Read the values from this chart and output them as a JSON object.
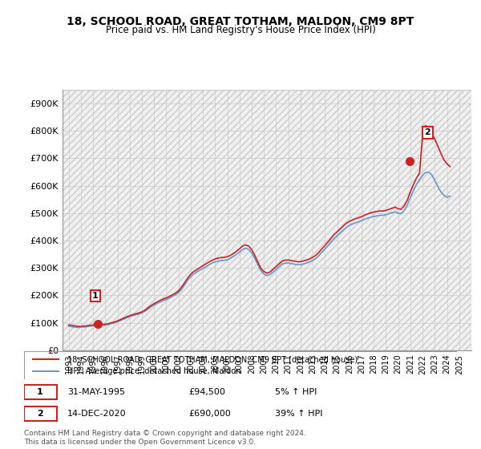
{
  "title": "18, SCHOOL ROAD, GREAT TOTHAM, MALDON, CM9 8PT",
  "subtitle": "Price paid vs. HM Land Registry's House Price Index (HPI)",
  "ylabel_ticks": [
    "£0",
    "£100K",
    "£200K",
    "£300K",
    "£400K",
    "£500K",
    "£600K",
    "£700K",
    "£800K",
    "£900K"
  ],
  "ytick_values": [
    0,
    100000,
    200000,
    300000,
    400000,
    500000,
    600000,
    700000,
    800000,
    900000
  ],
  "ylim": [
    0,
    950000
  ],
  "xlim_start": 1992.5,
  "xlim_end": 2026.0,
  "xticks": [
    1993,
    1994,
    1995,
    1996,
    1997,
    1998,
    1999,
    2000,
    2001,
    2002,
    2003,
    2004,
    2005,
    2006,
    2007,
    2008,
    2009,
    2010,
    2011,
    2012,
    2013,
    2014,
    2015,
    2016,
    2017,
    2018,
    2019,
    2020,
    2021,
    2022,
    2023,
    2024,
    2025
  ],
  "hpi_color": "#6699cc",
  "price_color": "#cc2222",
  "marker_color": "#cc2222",
  "background_hatch_color": "#dddddd",
  "grid_color": "#cccccc",
  "sale1_date": 1995.42,
  "sale1_price": 94500,
  "sale2_date": 2020.96,
  "sale2_price": 690000,
  "sale1_label": "1",
  "sale2_label": "2",
  "legend_line1": "18, SCHOOL ROAD, GREAT TOTHAM, MALDON, CM9 8PT (detached house)",
  "legend_line2": "HPI: Average price, detached house, Maldon",
  "annotation1": "1   31-MAY-1995        £94,500        5% ↑ HPI",
  "annotation2": "2   14-DEC-2020        £690,000      39% ↑ HPI",
  "footer": "Contains HM Land Registry data © Crown copyright and database right 2024.\nThis data is licensed under the Open Government Licence v3.0.",
  "hpi_data_x": [
    1993.0,
    1993.25,
    1993.5,
    1993.75,
    1994.0,
    1994.25,
    1994.5,
    1994.75,
    1995.0,
    1995.25,
    1995.5,
    1995.75,
    1996.0,
    1996.25,
    1996.5,
    1996.75,
    1997.0,
    1997.25,
    1997.5,
    1997.75,
    1998.0,
    1998.25,
    1998.5,
    1998.75,
    1999.0,
    1999.25,
    1999.5,
    1999.75,
    2000.0,
    2000.25,
    2000.5,
    2000.75,
    2001.0,
    2001.25,
    2001.5,
    2001.75,
    2002.0,
    2002.25,
    2002.5,
    2002.75,
    2003.0,
    2003.25,
    2003.5,
    2003.75,
    2004.0,
    2004.25,
    2004.5,
    2004.75,
    2005.0,
    2005.25,
    2005.5,
    2005.75,
    2006.0,
    2006.25,
    2006.5,
    2006.75,
    2007.0,
    2007.25,
    2007.5,
    2007.75,
    2008.0,
    2008.25,
    2008.5,
    2008.75,
    2009.0,
    2009.25,
    2009.5,
    2009.75,
    2010.0,
    2010.25,
    2010.5,
    2010.75,
    2011.0,
    2011.25,
    2011.5,
    2011.75,
    2012.0,
    2012.25,
    2012.5,
    2012.75,
    2013.0,
    2013.25,
    2013.5,
    2013.75,
    2014.0,
    2014.25,
    2014.5,
    2014.75,
    2015.0,
    2015.25,
    2015.5,
    2015.75,
    2016.0,
    2016.25,
    2016.5,
    2016.75,
    2017.0,
    2017.25,
    2017.5,
    2017.75,
    2018.0,
    2018.25,
    2018.5,
    2018.75,
    2019.0,
    2019.25,
    2019.5,
    2019.75,
    2020.0,
    2020.25,
    2020.5,
    2020.75,
    2021.0,
    2021.25,
    2021.5,
    2021.75,
    2022.0,
    2022.25,
    2022.5,
    2022.75,
    2023.0,
    2023.25,
    2023.5,
    2023.75,
    2024.0,
    2024.25
  ],
  "hpi_data_y": [
    88000,
    86000,
    84000,
    83000,
    84000,
    85000,
    86000,
    88000,
    89000,
    90000,
    90500,
    91000,
    92000,
    94000,
    97000,
    100000,
    104000,
    108000,
    113000,
    118000,
    122000,
    126000,
    129000,
    132000,
    136000,
    142000,
    150000,
    158000,
    165000,
    171000,
    176000,
    181000,
    185000,
    190000,
    196000,
    202000,
    210000,
    222000,
    238000,
    255000,
    268000,
    278000,
    285000,
    292000,
    298000,
    305000,
    312000,
    318000,
    322000,
    325000,
    327000,
    328000,
    330000,
    335000,
    342000,
    350000,
    358000,
    368000,
    372000,
    368000,
    355000,
    335000,
    312000,
    290000,
    278000,
    272000,
    276000,
    285000,
    295000,
    305000,
    315000,
    318000,
    318000,
    316000,
    314000,
    312000,
    312000,
    315000,
    318000,
    322000,
    328000,
    335000,
    345000,
    358000,
    370000,
    382000,
    395000,
    408000,
    418000,
    428000,
    438000,
    448000,
    455000,
    460000,
    465000,
    468000,
    472000,
    478000,
    482000,
    485000,
    488000,
    490000,
    492000,
    492000,
    494000,
    498000,
    502000,
    505000,
    500000,
    498000,
    510000,
    530000,
    558000,
    582000,
    605000,
    622000,
    638000,
    648000,
    650000,
    640000,
    620000,
    598000,
    578000,
    565000,
    558000,
    562000
  ],
  "price_data_x": [
    1993.0,
    1993.25,
    1993.5,
    1993.75,
    1994.0,
    1994.25,
    1994.5,
    1994.75,
    1995.0,
    1995.25,
    1995.5,
    1995.75,
    1996.0,
    1996.25,
    1996.5,
    1996.75,
    1997.0,
    1997.25,
    1997.5,
    1997.75,
    1998.0,
    1998.25,
    1998.5,
    1998.75,
    1999.0,
    1999.25,
    1999.5,
    1999.75,
    2000.0,
    2000.25,
    2000.5,
    2000.75,
    2001.0,
    2001.25,
    2001.5,
    2001.75,
    2002.0,
    2002.25,
    2002.5,
    2002.75,
    2003.0,
    2003.25,
    2003.5,
    2003.75,
    2004.0,
    2004.25,
    2004.5,
    2004.75,
    2005.0,
    2005.25,
    2005.5,
    2005.75,
    2006.0,
    2006.25,
    2006.5,
    2006.75,
    2007.0,
    2007.25,
    2007.5,
    2007.75,
    2008.0,
    2008.25,
    2008.5,
    2008.75,
    2009.0,
    2009.25,
    2009.5,
    2009.75,
    2010.0,
    2010.25,
    2010.5,
    2010.75,
    2011.0,
    2011.25,
    2011.5,
    2011.75,
    2012.0,
    2012.25,
    2012.5,
    2012.75,
    2013.0,
    2013.25,
    2013.5,
    2013.75,
    2014.0,
    2014.25,
    2014.5,
    2014.75,
    2015.0,
    2015.25,
    2015.5,
    2015.75,
    2016.0,
    2016.25,
    2016.5,
    2016.75,
    2017.0,
    2017.25,
    2017.5,
    2017.75,
    2018.0,
    2018.25,
    2018.5,
    2018.75,
    2019.0,
    2019.25,
    2019.5,
    2019.75,
    2020.0,
    2020.25,
    2020.5,
    2020.75,
    2021.0,
    2021.25,
    2021.5,
    2021.75,
    2022.0,
    2022.25,
    2022.5,
    2022.75,
    2023.0,
    2023.25,
    2023.5,
    2023.75,
    2024.0,
    2024.25
  ],
  "price_data_y": [
    92000,
    91000,
    89000,
    87000,
    87000,
    88000,
    89000,
    91000,
    92000,
    93000,
    93500,
    94000,
    95000,
    97000,
    100000,
    103000,
    107000,
    112000,
    117000,
    122000,
    126000,
    130000,
    133000,
    136000,
    140000,
    146000,
    155000,
    163000,
    170000,
    176000,
    182000,
    187000,
    191000,
    196000,
    202000,
    208000,
    216000,
    230000,
    246000,
    263000,
    277000,
    287000,
    294000,
    301000,
    308000,
    315000,
    322000,
    328000,
    333000,
    336000,
    338000,
    339000,
    341000,
    346000,
    353000,
    361000,
    370000,
    380000,
    384000,
    380000,
    367000,
    346000,
    322000,
    299000,
    287000,
    281000,
    285000,
    295000,
    305000,
    315000,
    325000,
    329000,
    329000,
    327000,
    325000,
    323000,
    323000,
    326000,
    329000,
    333000,
    339000,
    346000,
    357000,
    370000,
    382000,
    395000,
    408000,
    422000,
    432000,
    442000,
    453000,
    463000,
    470000,
    475000,
    480000,
    483000,
    487000,
    493000,
    497000,
    501000,
    504000,
    506000,
    508000,
    508000,
    510000,
    514000,
    518000,
    522000,
    516000,
    514000,
    527000,
    548000,
    578000,
    604000,
    628000,
    646000,
    782000,
    820000,
    808000,
    792000,
    770000,
    745000,
    718000,
    695000,
    680000,
    670000
  ]
}
